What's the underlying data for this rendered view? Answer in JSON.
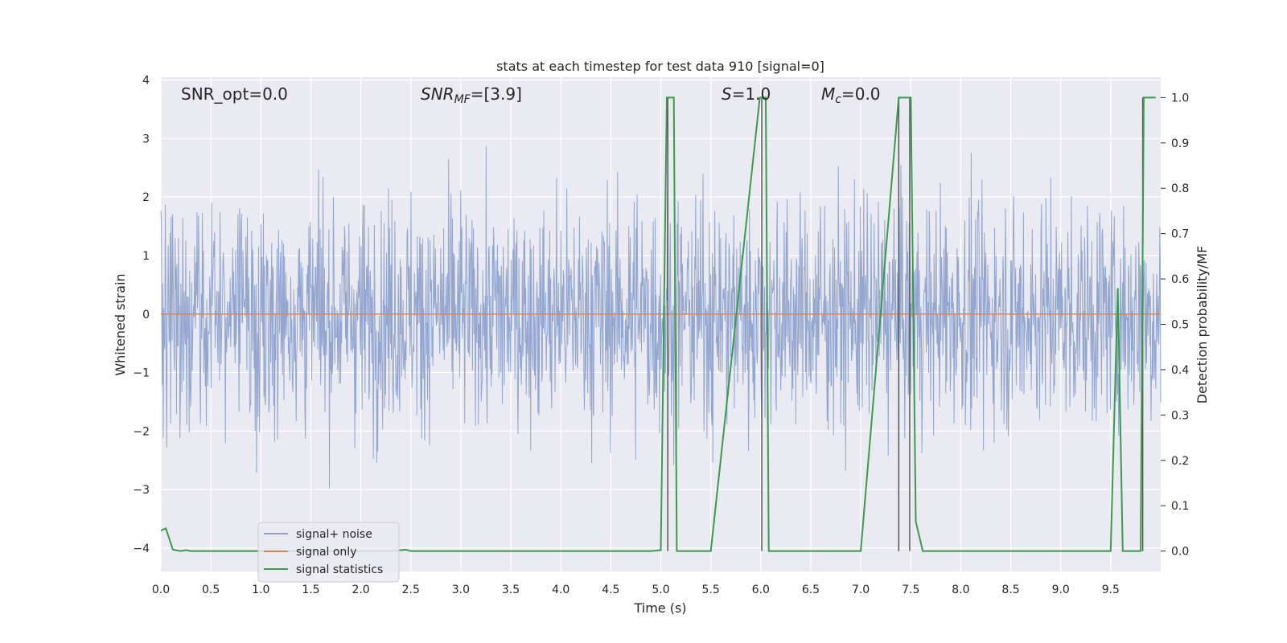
{
  "chart_data": {
    "type": "line",
    "title": "stats at each timestep for test data 910 [signal=0]",
    "xlabel": "Time (s)",
    "ylabel": "Whitened strain",
    "y2label": "Detection probability/MF",
    "xlim": [
      0.0,
      10.0
    ],
    "ylim": [
      -4.4,
      4.05
    ],
    "y2lim": [
      -0.045,
      1.045
    ],
    "x_ticks": [
      0.0,
      0.5,
      1.0,
      1.5,
      2.0,
      2.5,
      3.0,
      3.5,
      4.0,
      4.5,
      5.0,
      5.5,
      6.0,
      6.5,
      7.0,
      7.5,
      8.0,
      8.5,
      9.0,
      9.5
    ],
    "x_tick_labels": [
      "0.0",
      "0.5",
      "1.0",
      "1.5",
      "2.0",
      "2.5",
      "3.0",
      "3.5",
      "4.0",
      "4.5",
      "5.0",
      "5.5",
      "6.0",
      "6.5",
      "7.0",
      "7.5",
      "8.0",
      "8.5",
      "9.0",
      "9.5"
    ],
    "y_ticks": [
      -4,
      -3,
      -2,
      -1,
      0,
      1,
      2,
      3,
      4
    ],
    "y_tick_labels": [
      "−4",
      "−3",
      "−2",
      "−1",
      "0",
      "1",
      "2",
      "3",
      "4"
    ],
    "y2_ticks": [
      0.0,
      0.1,
      0.2,
      0.3,
      0.4,
      0.5,
      0.6,
      0.7,
      0.8,
      0.9,
      1.0
    ],
    "y2_tick_labels": [
      "0.0",
      "0.1",
      "0.2",
      "0.3",
      "0.4",
      "0.5",
      "0.6",
      "0.7",
      "0.8",
      "0.9",
      "1.0"
    ],
    "grid": true,
    "legend_placement": "lower-left",
    "annotations": [
      {
        "main": "SNR_opt=0.0",
        "sub": "",
        "rest": ""
      },
      {
        "main": "SNR",
        "sub": "MF",
        "rest": "=[3.9]"
      },
      {
        "main": "S",
        "sub": "",
        "rest": "=1.0"
      },
      {
        "main": "M",
        "sub": "c",
        "rest": "=0.0"
      }
    ],
    "series": [
      {
        "name": "signal+ noise",
        "color": "#8ea2cc",
        "axis": "left",
        "kind": "noise",
        "sample_count": 2048
      },
      {
        "name": "signal only",
        "color": "#dd8452",
        "axis": "left",
        "values_constant": 0.0
      },
      {
        "name": "signal statistics",
        "color": "#3a9b4f",
        "axis": "right",
        "x": [
          0.0,
          0.05,
          0.12,
          0.2,
          0.25,
          0.3,
          0.4,
          0.5,
          1.0,
          1.5,
          2.0,
          2.3,
          2.4,
          2.45,
          2.5,
          2.55,
          3.0,
          3.5,
          4.0,
          4.5,
          4.9,
          5.0,
          5.06,
          5.13,
          5.16,
          5.2,
          5.5,
          5.99,
          6.05,
          6.08,
          6.12,
          6.2,
          6.5,
          6.6,
          6.7,
          7.0,
          7.38,
          7.43,
          7.5,
          7.55,
          7.62,
          8.0,
          8.5,
          9.0,
          9.5,
          9.57,
          9.62,
          9.75,
          9.8,
          9.83,
          9.88,
          9.95
        ],
        "values": [
          0.045,
          0.05,
          0.003,
          0.0,
          0.002,
          0.0,
          0.0,
          0.0,
          0.0,
          0.0,
          0.0,
          0.0,
          0.002,
          0.003,
          0.0,
          0.0,
          0.0,
          0.0,
          0.0,
          0.0,
          0.0,
          0.002,
          1.0,
          1.0,
          0.0,
          0.0,
          0.0,
          1.0,
          1.0,
          0.0,
          0.0,
          0.0,
          0.0,
          0.0,
          0.0,
          0.0,
          1.0,
          1.0,
          1.0,
          0.065,
          0.0,
          0.0,
          0.0,
          0.0,
          0.0,
          0.58,
          0.0,
          0.0,
          0.0,
          1.0,
          1.0,
          1.0
        ]
      }
    ],
    "vertical_markers": {
      "color": "#555555",
      "x": [
        5.07,
        6.01,
        7.38,
        7.49,
        9.82
      ]
    }
  }
}
